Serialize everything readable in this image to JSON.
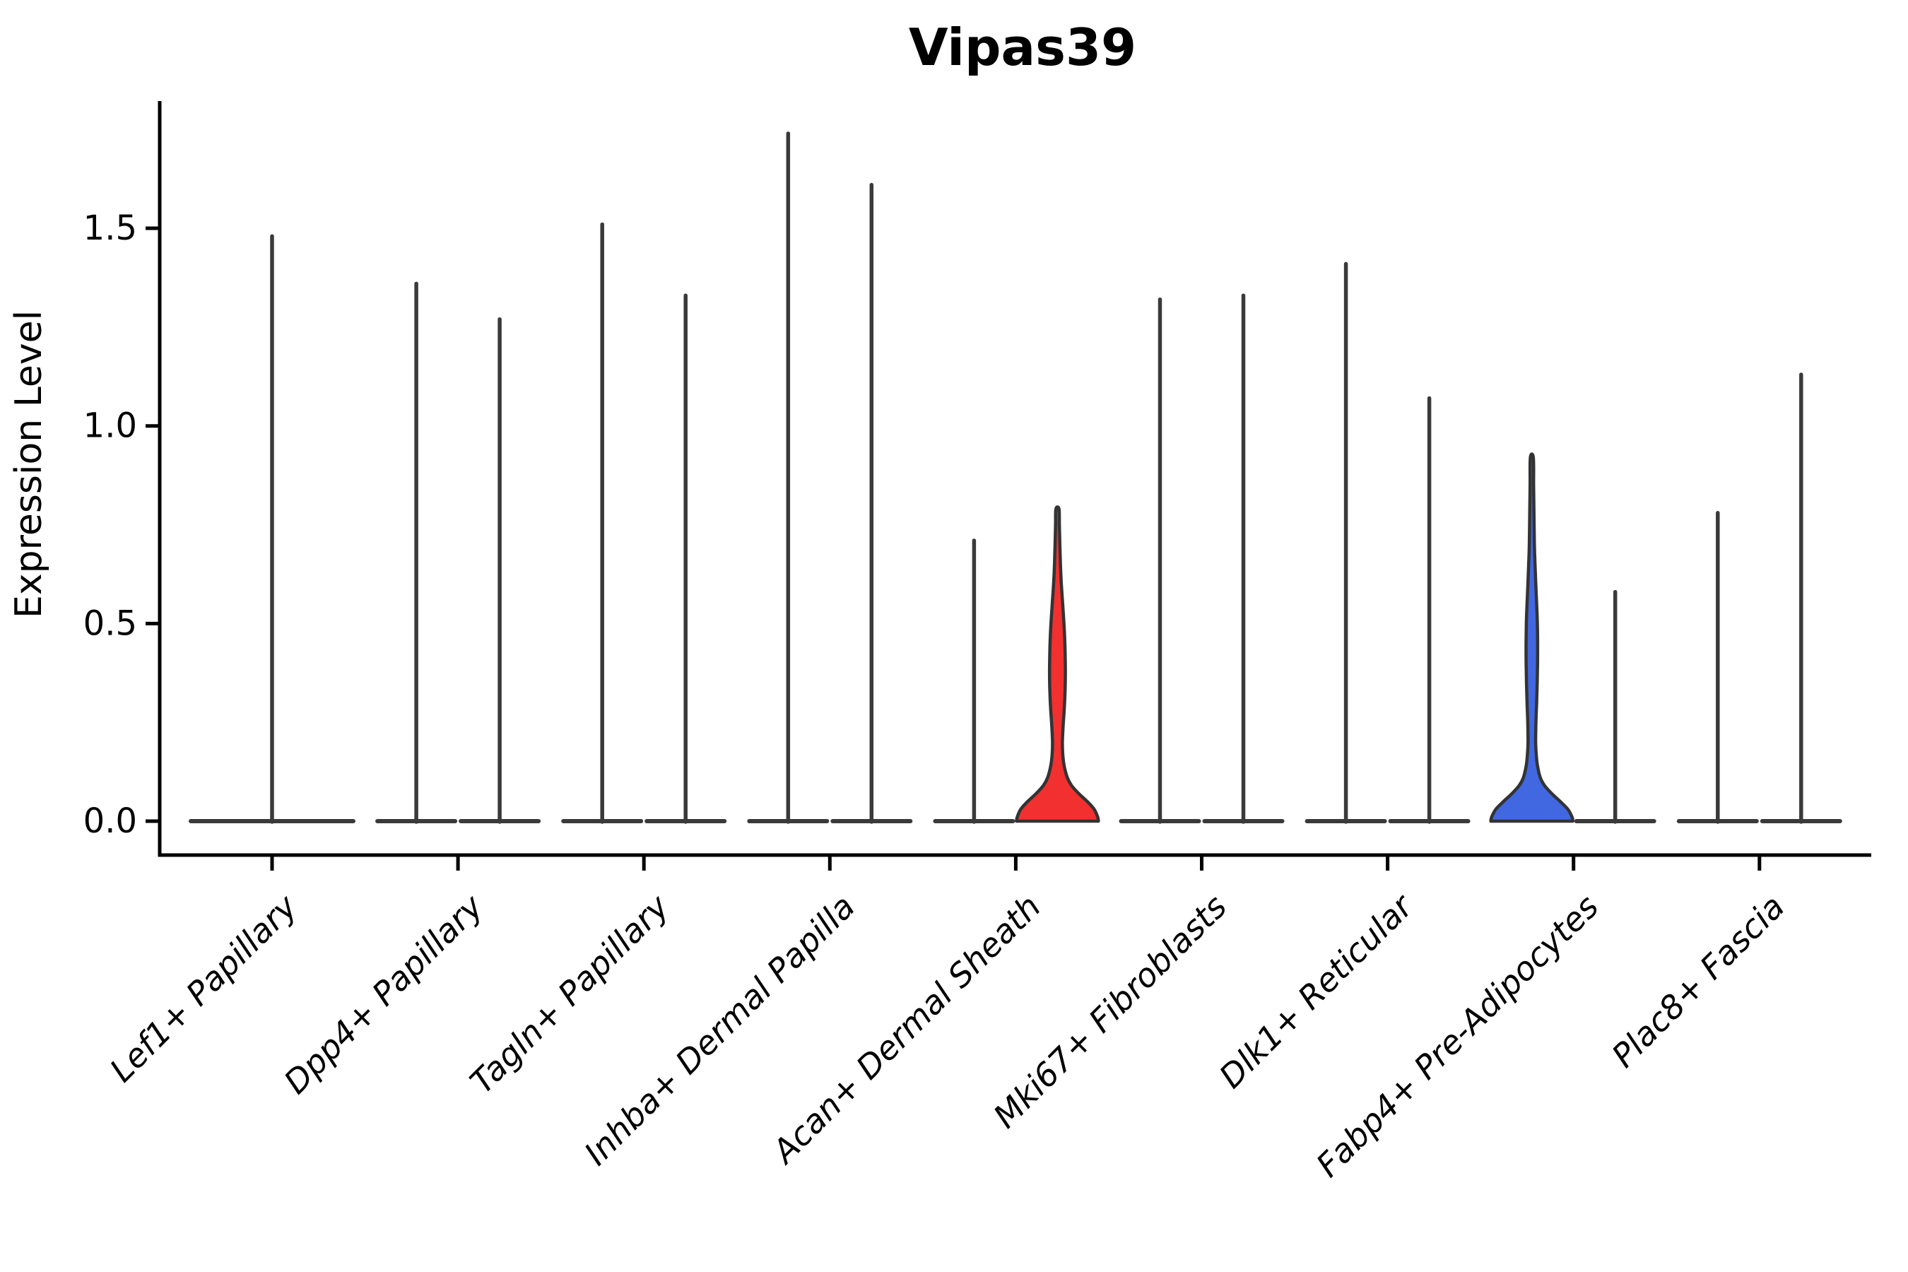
{
  "chart_data": {
    "type": "violin",
    "title": "Vipas39",
    "ylabel": "Expression Level",
    "xlabel": "",
    "yticks": [
      0.0,
      0.5,
      1.0,
      1.5
    ],
    "ytick_labels": [
      "0.0",
      "0.5",
      "1.0",
      "1.5"
    ],
    "ylim": [
      -0.085,
      1.82
    ],
    "grid": false,
    "legend": "none",
    "categories": [
      "Lef1+ Papillary",
      "Dpp4+ Papillary",
      "Tagln+ Papillary",
      "Inhba+ Dermal Papilla",
      "Acan+ Dermal Sheath",
      "Mki67+ Fibroblasts",
      "Dlk1+ Reticular",
      "Fabp4+ Pre-Adipocytes",
      "Plac8+ Fascia"
    ],
    "groups": [
      {
        "category": "Lef1+ Papillary",
        "violins": [
          {
            "slot": "center",
            "kind": "spike",
            "max": 1.48
          }
        ]
      },
      {
        "category": "Dpp4+ Papillary",
        "violins": [
          {
            "slot": "left",
            "kind": "spike",
            "max": 1.36
          },
          {
            "slot": "right",
            "kind": "spike",
            "max": 1.27
          }
        ]
      },
      {
        "category": "Tagln+ Papillary",
        "violins": [
          {
            "slot": "left",
            "kind": "spike",
            "max": 1.51
          },
          {
            "slot": "right",
            "kind": "spike",
            "max": 1.33
          }
        ]
      },
      {
        "category": "Inhba+ Dermal Papilla",
        "violins": [
          {
            "slot": "left",
            "kind": "spike",
            "max": 1.74
          },
          {
            "slot": "right",
            "kind": "spike",
            "max": 1.61
          }
        ]
      },
      {
        "category": "Acan+ Dermal Sheath",
        "violins": [
          {
            "slot": "left",
            "kind": "spike",
            "max": 0.71
          },
          {
            "slot": "right",
            "kind": "shaped",
            "max": 0.79,
            "fill": "#f23030",
            "profile": [
              [
                0.0,
                58
              ],
              [
                0.01,
                57
              ],
              [
                0.03,
                52
              ],
              [
                0.05,
                42
              ],
              [
                0.07,
                30
              ],
              [
                0.09,
                20
              ],
              [
                0.11,
                14
              ],
              [
                0.14,
                9.5
              ],
              [
                0.17,
                7.5
              ],
              [
                0.2,
                7.0
              ],
              [
                0.24,
                8.0
              ],
              [
                0.28,
                9.5
              ],
              [
                0.33,
                10.8
              ],
              [
                0.38,
                11.2
              ],
              [
                0.43,
                10.8
              ],
              [
                0.48,
                9.8
              ],
              [
                0.52,
                8.5
              ],
              [
                0.56,
                7.0
              ],
              [
                0.6,
                5.5
              ],
              [
                0.65,
                4.2
              ],
              [
                0.7,
                3.4
              ],
              [
                0.75,
                2.7
              ],
              [
                0.79,
                2.2
              ]
            ]
          }
        ]
      },
      {
        "category": "Mki67+ Fibroblasts",
        "violins": [
          {
            "slot": "left",
            "kind": "spike",
            "max": 1.32
          },
          {
            "slot": "right",
            "kind": "spike",
            "max": 1.33
          }
        ]
      },
      {
        "category": "Dlk1+ Reticular",
        "violins": [
          {
            "slot": "left",
            "kind": "spike",
            "max": 1.41
          },
          {
            "slot": "right",
            "kind": "spike",
            "max": 1.07
          }
        ]
      },
      {
        "category": "Fabp4+ Pre-Adipocytes",
        "violins": [
          {
            "slot": "left",
            "kind": "shaped",
            "max": 0.92,
            "fill": "#4167e1",
            "profile": [
              [
                0.0,
                58
              ],
              [
                0.01,
                57
              ],
              [
                0.03,
                51
              ],
              [
                0.05,
                40
              ],
              [
                0.07,
                28
              ],
              [
                0.09,
                18
              ],
              [
                0.11,
                12
              ],
              [
                0.14,
                8.0
              ],
              [
                0.17,
                6.2
              ],
              [
                0.2,
                5.4
              ],
              [
                0.25,
                5.8
              ],
              [
                0.3,
                6.8
              ],
              [
                0.35,
                7.6
              ],
              [
                0.4,
                8.1
              ],
              [
                0.45,
                8.2
              ],
              [
                0.5,
                7.8
              ],
              [
                0.55,
                6.8
              ],
              [
                0.6,
                5.6
              ],
              [
                0.65,
                4.5
              ],
              [
                0.7,
                3.6
              ],
              [
                0.78,
                3.0
              ],
              [
                0.85,
                2.5
              ],
              [
                0.92,
                2.1
              ]
            ]
          },
          {
            "slot": "right",
            "kind": "spike",
            "max": 0.58
          }
        ]
      },
      {
        "category": "Plac8+ Fascia",
        "violins": [
          {
            "slot": "left",
            "kind": "spike",
            "max": 0.78
          },
          {
            "slot": "right",
            "kind": "spike",
            "max": 1.13
          }
        ]
      }
    ],
    "colors": {
      "red_fill": "#f23030",
      "blue_fill": "#4167e1",
      "violin_stroke": "#333333",
      "spike_color": "#3a3a3a",
      "axis_color": "#000000",
      "background": "#ffffff"
    }
  }
}
